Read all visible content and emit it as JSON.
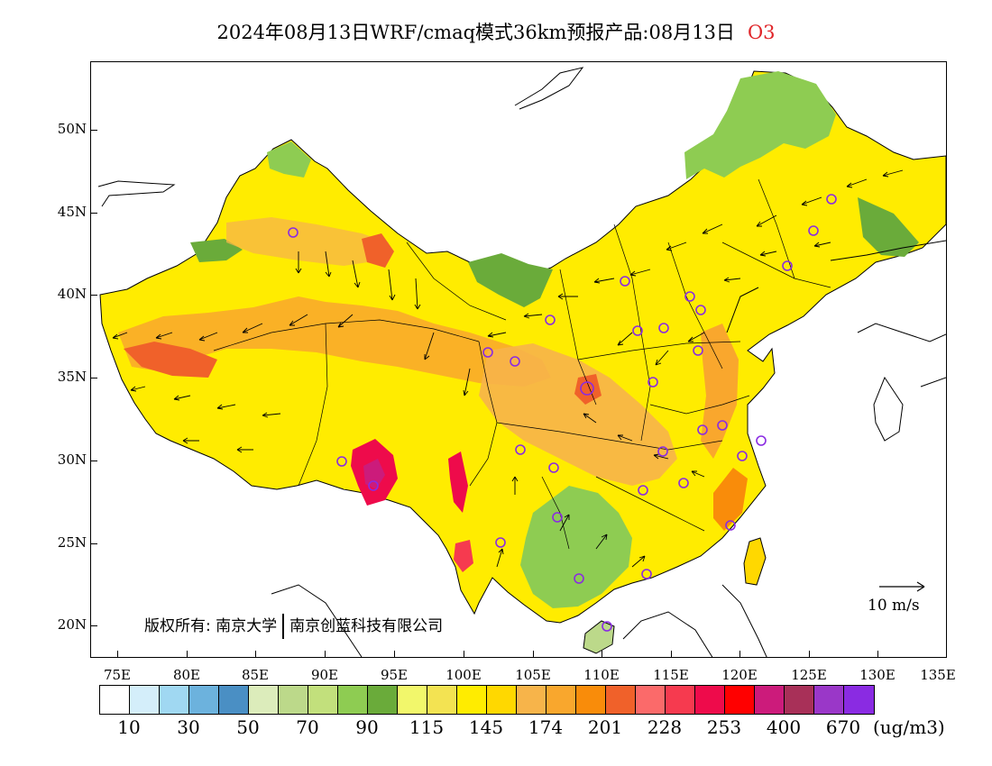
{
  "title": {
    "main": "2024年08月13日WRF/cmaq模式36km预报产品:08月13日",
    "species": "O3"
  },
  "lat_labels": [
    "50N",
    "45N",
    "40N",
    "35N",
    "30N",
    "25N",
    "20N"
  ],
  "lon_labels": [
    "75E",
    "80E",
    "85E",
    "90E",
    "95E",
    "100E",
    "105E",
    "110E",
    "115E",
    "120E",
    "125E",
    "130E",
    "135E"
  ],
  "credit": {
    "prefix": "版权所有:",
    "org1": "南京大学",
    "org2": "南京创蓝科技有限公司"
  },
  "wind_reference": "10 m/s",
  "colorbar": {
    "colors": [
      "#ffffff",
      "#d4eefa",
      "#a0d8f2",
      "#6cb2dd",
      "#4a8fc4",
      "#dcecbb",
      "#bcd98a",
      "#c2e07c",
      "#8ecc52",
      "#6aab3a",
      "#f2f76b",
      "#f3e352",
      "#ffec00",
      "#ffd800",
      "#f7b44a",
      "#f9a72d",
      "#f98c0a",
      "#f0612a",
      "#fb6a6a",
      "#f63a4f",
      "#ee0b4b",
      "#ff0000",
      "#cc1b7b",
      "#a83058",
      "#9a37c8",
      "#8a2be2"
    ],
    "labels": [
      "10",
      "30",
      "50",
      "70",
      "90",
      "115",
      "145",
      "174",
      "201",
      "228",
      "253",
      "400",
      "670"
    ],
    "unit": "(ug/m3)"
  },
  "legend_colors_region": {
    "green": "#8ecc52",
    "yellow": "#ffec00",
    "orange": "#f9a72d",
    "red": "#ee0b4b"
  }
}
